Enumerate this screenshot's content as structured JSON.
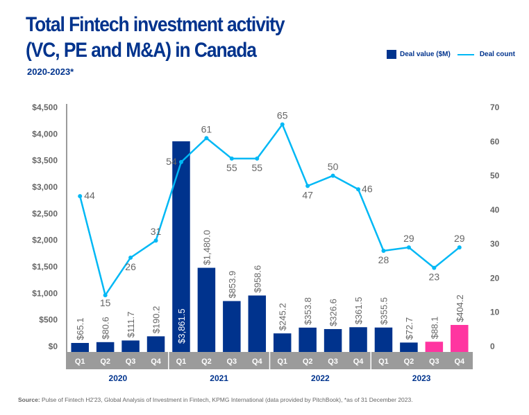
{
  "header": {
    "title_line1": "Total Fintech investment activity",
    "title_line2": "(VC, PE and M&A) in Canada",
    "subtitle": "2020-2023*"
  },
  "legend": {
    "bar_label": "Deal value ($M)",
    "line_label": "Deal count"
  },
  "footer": {
    "source_label": "Source:",
    "source_text": " Pulse of Fintech H2'23, Global Analysis of Investment in Fintech, KPMG International (data provided by PitchBook), *as of 31 December 2023."
  },
  "colors": {
    "bar": "#00338D",
    "bar_highlight": "#FF35A0",
    "line": "#00B8F5",
    "axis_band": "#9B9B9B",
    "text_gray": "#666666"
  },
  "chart_data": {
    "type": "bar+line",
    "title": "Total Fintech investment activity (VC, PE and M&A) in Canada",
    "subtitle": "2020-2023*",
    "years": [
      "2020",
      "2021",
      "2022",
      "2023"
    ],
    "categories": [
      "Q1",
      "Q2",
      "Q3",
      "Q4",
      "Q1",
      "Q2",
      "Q3",
      "Q4",
      "Q1",
      "Q2",
      "Q3",
      "Q4",
      "Q1",
      "Q2",
      "Q3",
      "Q4"
    ],
    "series": [
      {
        "name": "Deal value ($M)",
        "type": "bar",
        "axis": "left",
        "values": [
          65.1,
          80.6,
          111.7,
          190.2,
          3861.5,
          1480.0,
          853.9,
          958.6,
          245.2,
          353.8,
          326.6,
          361.5,
          355.5,
          72.7,
          88.1,
          404.2
        ],
        "labels": [
          "$65.1",
          "$80.6",
          "$111.7",
          "$190.2",
          "$3,861.5",
          "$1,480.0",
          "$853.9",
          "$958.6",
          "$245.2",
          "$353.8",
          "$326.6",
          "$361.5",
          "$355.5",
          "$72.7",
          "$88.1",
          "$404.2"
        ],
        "highlighted_indices": [
          14,
          15
        ]
      },
      {
        "name": "Deal count",
        "type": "line",
        "axis": "right",
        "values": [
          44,
          15,
          26,
          31,
          54,
          61,
          55,
          55,
          65,
          47,
          50,
          46,
          28,
          29,
          23,
          29
        ]
      }
    ],
    "y_left": {
      "range": [
        0,
        4500
      ],
      "ticks": [
        "$0",
        "$500",
        "$1,000",
        "$1,500",
        "$2,000",
        "$2,500",
        "$3,000",
        "$3,500",
        "$4,000",
        "$4,500"
      ]
    },
    "y_right": {
      "range": [
        0,
        70
      ],
      "ticks": [
        "0",
        "10",
        "20",
        "30",
        "40",
        "50",
        "60",
        "70"
      ]
    },
    "grid": false,
    "legend_position": "top-right"
  }
}
